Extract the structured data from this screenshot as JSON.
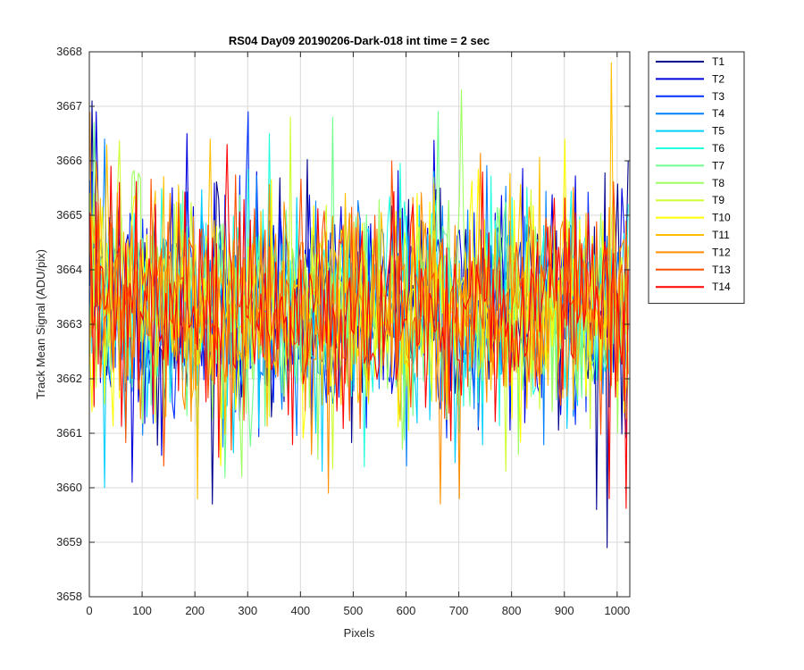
{
  "chart_data": {
    "type": "line",
    "title": "RS04 Day09 20190206-Dark-018 int time = 2 sec",
    "xlabel": "Pixels",
    "ylabel": "Track Mean Signal (ADU/pix)",
    "xlim": [
      0,
      1024
    ],
    "ylim": [
      3658,
      3668
    ],
    "xticks": [
      0,
      100,
      200,
      300,
      400,
      500,
      600,
      700,
      800,
      900,
      1000
    ],
    "yticks": [
      3658,
      3659,
      3660,
      3661,
      3662,
      3663,
      3664,
      3665,
      3666,
      3667,
      3668
    ],
    "grid": true,
    "legend_position": "outside-top-right",
    "x": {
      "start": 1,
      "end": 1024,
      "step": 4
    },
    "series": [
      {
        "name": "T1",
        "color": "#00008f",
        "mean": 3663.3,
        "std": 1.0,
        "seed": 11,
        "peaks": [
          [
            6,
            3667.1
          ],
          [
            235,
            3659.7
          ],
          [
            960,
            3659.6
          ],
          [
            1020,
            3666.0
          ],
          [
            980,
            3658.9
          ]
        ]
      },
      {
        "name": "T2",
        "color": "#0000df",
        "mean": 3663.3,
        "std": 1.0,
        "seed": 23,
        "peaks": [
          [
            12,
            3666.9
          ],
          [
            80,
            3660.1
          ],
          [
            185,
            3666.5
          ]
        ]
      },
      {
        "name": "T3",
        "color": "#0030ff",
        "mean": 3663.3,
        "std": 1.0,
        "seed": 37,
        "peaks": [
          [
            300,
            3666.9
          ],
          [
            420,
            3661.1
          ]
        ]
      },
      {
        "name": "T4",
        "color": "#0080ff",
        "mean": 3663.3,
        "std": 1.0,
        "seed": 41,
        "peaks": [
          [
            30,
            3666.4
          ],
          [
            600,
            3660.4
          ]
        ]
      },
      {
        "name": "T5",
        "color": "#00cfff",
        "mean": 3663.3,
        "std": 1.0,
        "seed": 53,
        "peaks": [
          [
            30,
            3660.0
          ],
          [
            440,
            3660.3
          ]
        ]
      },
      {
        "name": "T6",
        "color": "#20ffdf",
        "mean": 3663.3,
        "std": 1.0,
        "seed": 67,
        "peaks": [
          [
            340,
            3666.5
          ],
          [
            700,
            3661.0
          ]
        ]
      },
      {
        "name": "T7",
        "color": "#70ff8f",
        "mean": 3663.3,
        "std": 1.0,
        "seed": 79,
        "peaks": [
          [
            10,
            3666.7
          ],
          [
            460,
            3666.8
          ],
          [
            660,
            3666.9
          ]
        ]
      },
      {
        "name": "T8",
        "color": "#9fff60",
        "mean": 3663.3,
        "std": 1.0,
        "seed": 83,
        "peaks": [
          [
            706,
            3667.3
          ],
          [
            290,
            3660.2
          ]
        ]
      },
      {
        "name": "T9",
        "color": "#cfff30",
        "mean": 3663.3,
        "std": 1.0,
        "seed": 97,
        "peaks": [
          [
            380,
            3666.8
          ],
          [
            790,
            3660.3
          ]
        ]
      },
      {
        "name": "T10",
        "color": "#ffff00",
        "mean": 3663.3,
        "std": 1.0,
        "seed": 101,
        "peaks": [
          [
            5,
            3661.4
          ],
          [
            250,
            3660.4
          ],
          [
            900,
            3666.4
          ]
        ]
      },
      {
        "name": "T11",
        "color": "#ffbf00",
        "mean": 3663.3,
        "std": 1.0,
        "seed": 113,
        "peaks": [
          [
            988,
            3667.8
          ],
          [
            230,
            3666.4
          ]
        ]
      },
      {
        "name": "T12",
        "color": "#ff8f00",
        "mean": 3663.3,
        "std": 1.0,
        "seed": 127,
        "peaks": [
          [
            452,
            3659.9
          ],
          [
            703,
            3659.8
          ],
          [
            666,
            3659.7
          ],
          [
            3,
            3666.9
          ]
        ]
      },
      {
        "name": "T13",
        "color": "#ff4f00",
        "mean": 3663.3,
        "std": 1.0,
        "seed": 131,
        "peaks": [
          [
            140,
            3660.4
          ],
          [
            575,
            3666.0
          ]
        ]
      },
      {
        "name": "T14",
        "color": "#ff0000",
        "mean": 3663.3,
        "std": 0.9,
        "seed": 139,
        "peaks": [
          [
            262,
            3666.3
          ],
          [
            985,
            3659.8
          ],
          [
            40,
            3665.9
          ]
        ]
      }
    ]
  }
}
